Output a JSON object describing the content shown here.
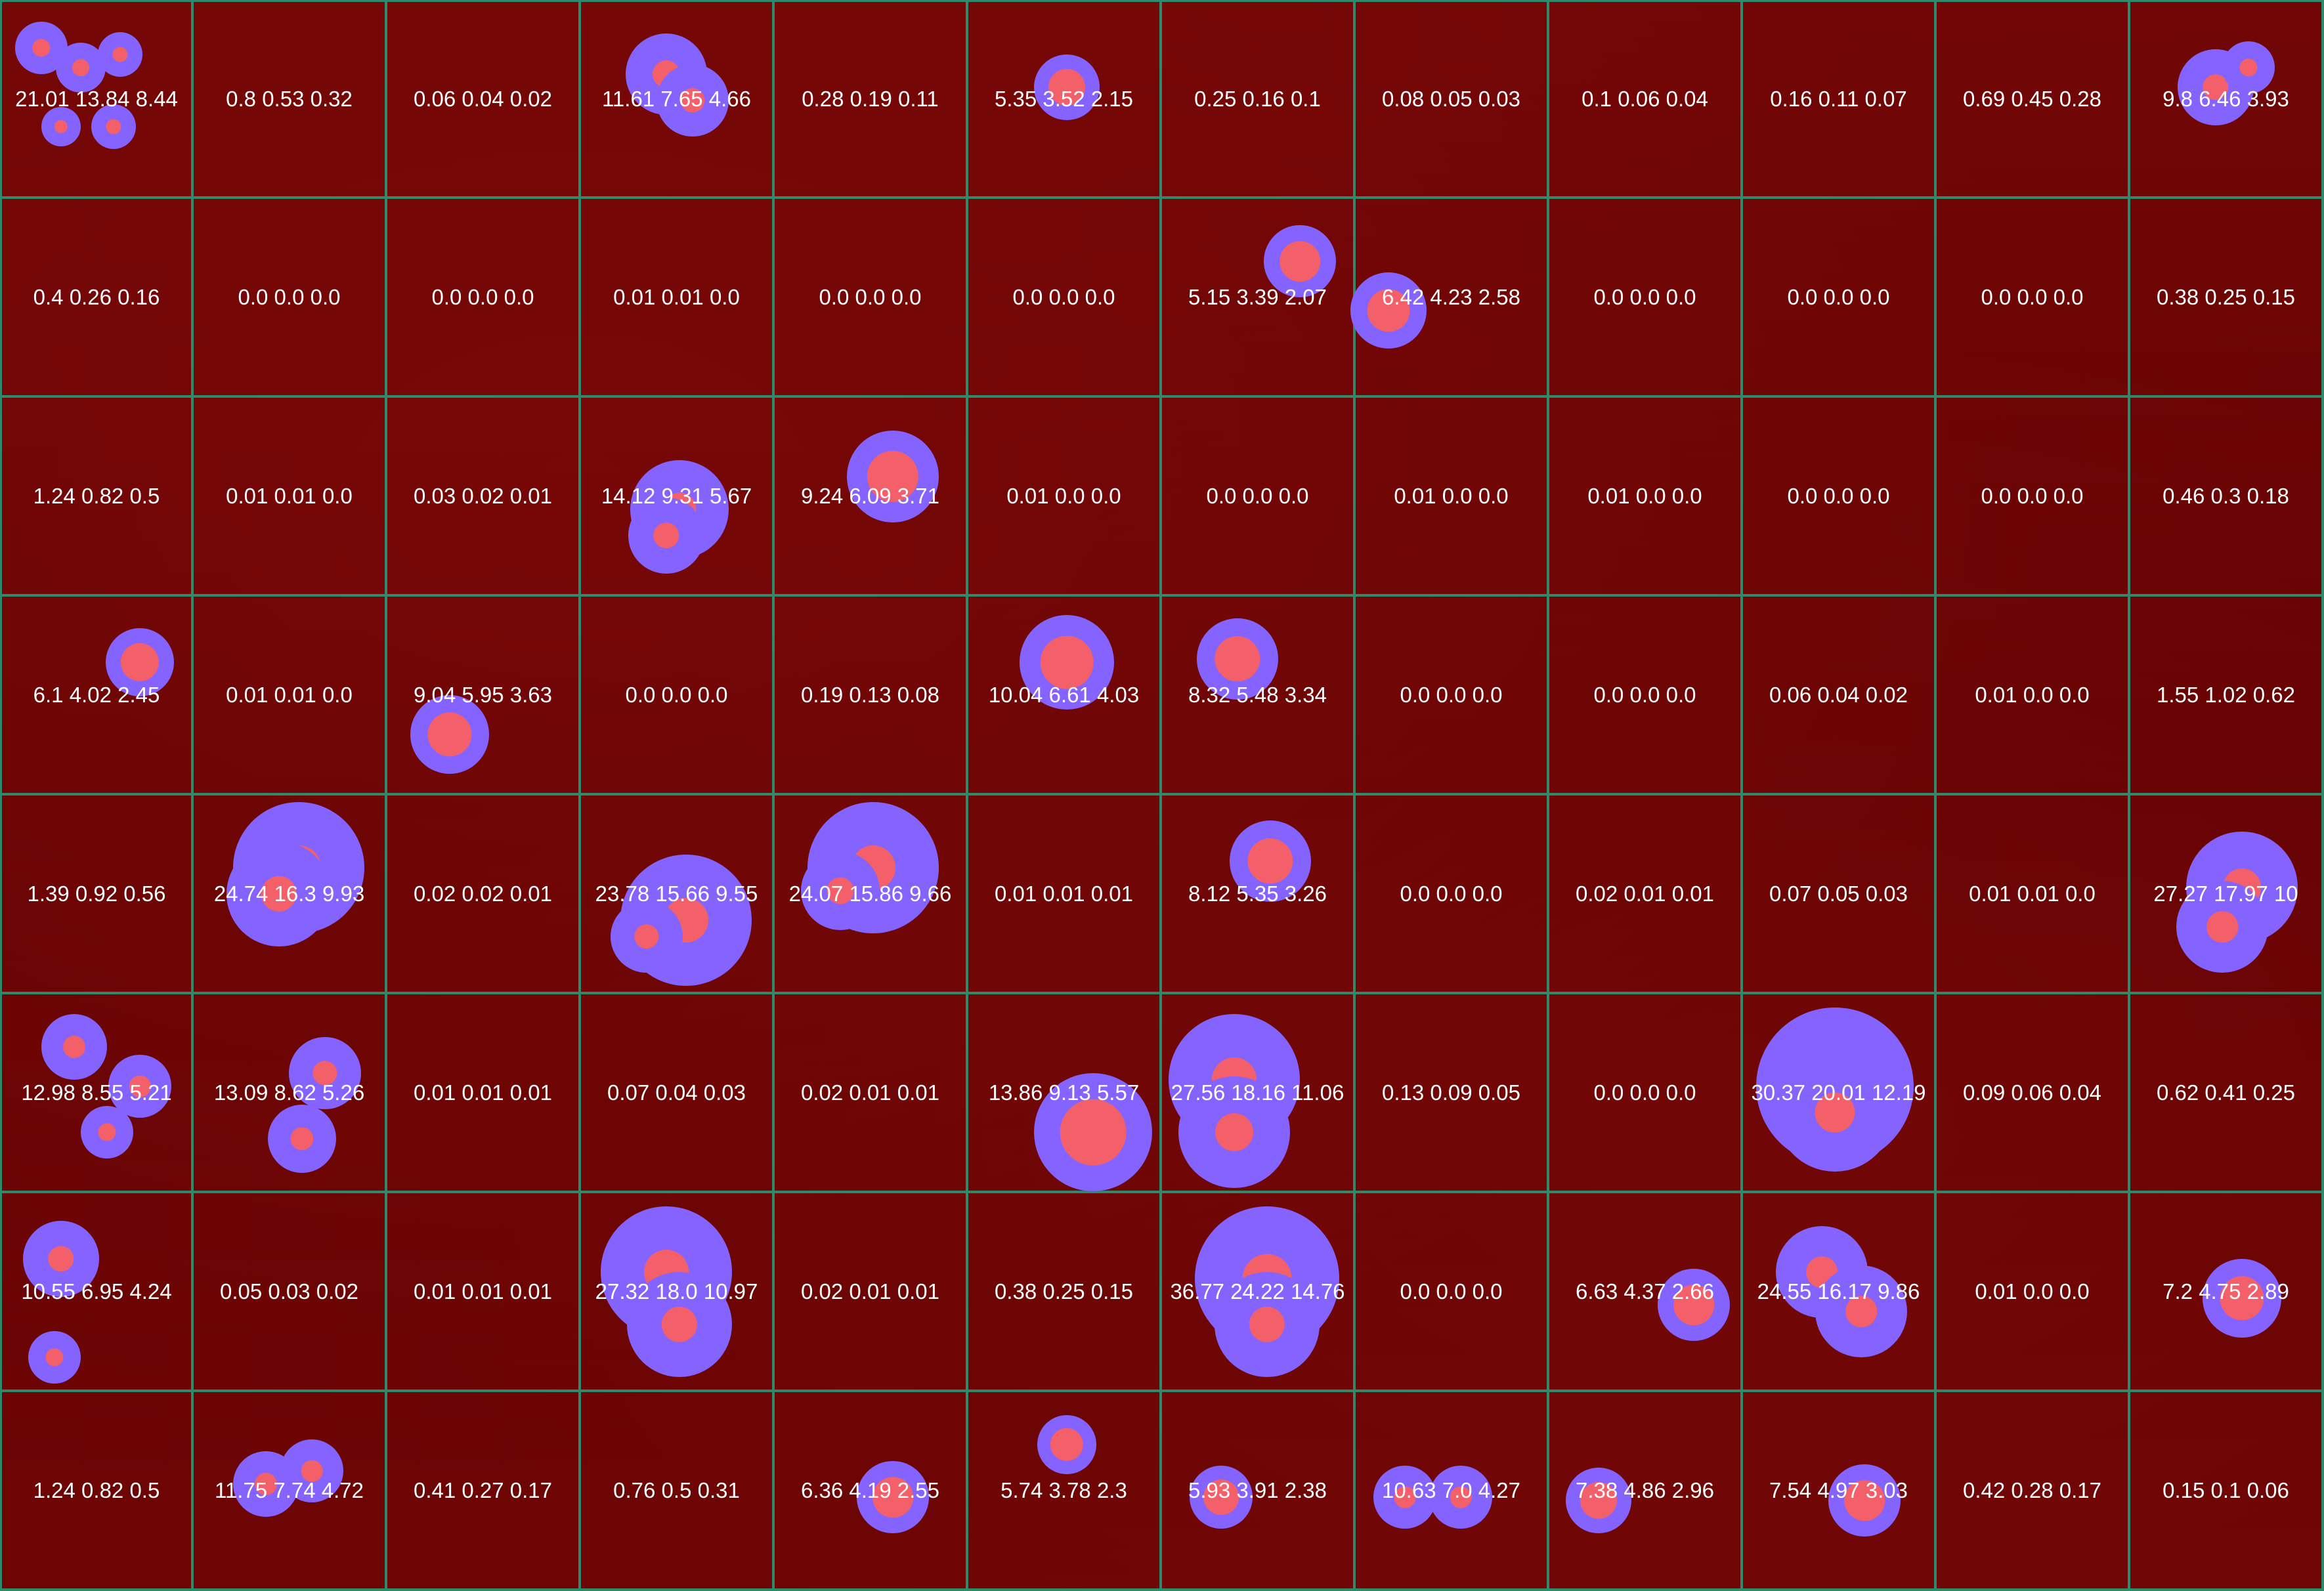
{
  "grid": {
    "rows": 8,
    "cols": 12,
    "colors": {
      "background": "#6a0404",
      "grid_line": "#2e8a6a",
      "colony_halo": "#8463ff",
      "colony_core": "#f4606a",
      "label_text": "#ffffff"
    },
    "cells": [
      [
        "21.01 13.84 8.44",
        "0.8 0.53 0.32",
        "0.06 0.04 0.02",
        "11.61 7.65 4.66",
        "0.28 0.19 0.11",
        "5.35 3.52 2.15",
        "0.25 0.16 0.1",
        "0.08 0.05 0.03",
        "0.1 0.06 0.04",
        "0.16 0.11 0.07",
        "0.69 0.45 0.28",
        "9.8 6.46 3.93"
      ],
      [
        "0.4 0.26 0.16",
        "0.0 0.0 0.0",
        "0.0 0.0 0.0",
        "0.01 0.01 0.0",
        "0.0 0.0 0.0",
        "0.0 0.0 0.0",
        "5.15 3.39 2.07",
        "6.42 4.23 2.58",
        "0.0 0.0 0.0",
        "0.0 0.0 0.0",
        "0.0 0.0 0.0",
        "0.38 0.25 0.15"
      ],
      [
        "1.24 0.82 0.5",
        "0.01 0.01 0.0",
        "0.03 0.02 0.01",
        "14.12 9.31 5.67",
        "9.24 6.09 3.71",
        "0.01 0.0 0.0",
        "0.0 0.0 0.0",
        "0.01 0.0 0.0",
        "0.01 0.0 0.0",
        "0.0 0.0 0.0",
        "0.0 0.0 0.0",
        "0.46 0.3 0.18"
      ],
      [
        "6.1 4.02 2.45",
        "0.01 0.01 0.0",
        "9.04 5.95 3.63",
        "0.0 0.0 0.0",
        "0.19 0.13 0.08",
        "10.04 6.61 4.03",
        "8.32 5.48 3.34",
        "0.0 0.0 0.0",
        "0.0 0.0 0.0",
        "0.06 0.04 0.02",
        "0.01 0.0 0.0",
        "1.55 1.02 0.62"
      ],
      [
        "1.39 0.92 0.56",
        "24.74 16.3 9.93",
        "0.02 0.02 0.01",
        "23.78 15.66 9.55",
        "24.07 15.86 9.66",
        "0.01 0.01 0.01",
        "8.12 5.35 3.26",
        "0.0 0.0 0.0",
        "0.02 0.01 0.01",
        "0.07 0.05 0.03",
        "0.01 0.01 0.0",
        "27.27 17.97 10"
      ],
      [
        "12.98 8.55 5.21",
        "13.09 8.62 5.26",
        "0.01 0.01 0.01",
        "0.07 0.04 0.03",
        "0.02 0.01 0.01",
        "13.86 9.13 5.57",
        "27.56 18.16 11.06",
        "0.13 0.09 0.05",
        "0.0 0.0 0.0",
        "30.37 20.01 12.19",
        "0.09 0.06 0.04",
        "0.62 0.41 0.25"
      ],
      [
        "10.55 6.95 4.24",
        "0.05 0.03 0.02",
        "0.01 0.01 0.01",
        "27.32 18.0 10.97",
        "0.02 0.01 0.01",
        "0.38 0.25 0.15",
        "36.77 24.22 14.76",
        "0.0 0.0 0.0",
        "6.63 4.37 2.66",
        "24.55 16.17 9.86",
        "0.01 0.0 0.0",
        "7.2 4.75 2.89"
      ],
      [
        "1.24 0.82 0.5",
        "11.75 7.74 4.72",
        "0.41 0.27 0.17",
        "0.76 0.5 0.31",
        "6.36 4.19 2.55",
        "5.74 3.78 2.3",
        "5.93 3.91 2.38",
        "10.63 7.0 4.27",
        "7.38 4.86 2.96",
        "7.54 4.97 3.03",
        "0.42 0.28 0.17",
        "0.15 0.1 0.06"
      ]
    ]
  }
}
